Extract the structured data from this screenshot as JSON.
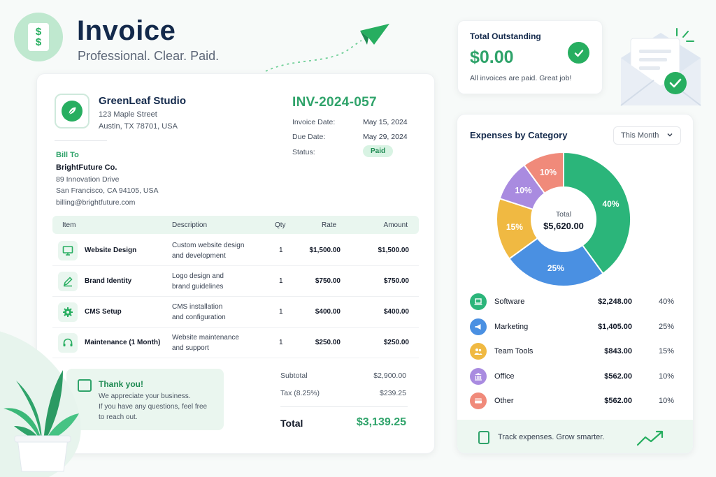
{
  "header": {
    "title": "Invoice",
    "subtitle": "Professional. Clear. Paid."
  },
  "invoice": {
    "company": {
      "name": "GreenLeaf Studio",
      "address1": "123 Maple Street",
      "address2": "Austin, TX 78701, USA"
    },
    "number": "INV-2024-057",
    "meta": [
      {
        "label": "Invoice Date:",
        "value": "May 15, 2024"
      },
      {
        "label": "Due Date:",
        "value": "May 29, 2024"
      },
      {
        "label": "Status:",
        "value": "Paid"
      }
    ],
    "bill_to": {
      "label": "Bill To",
      "name": "BrightFuture Co.",
      "address1": "89 Innovation Drive",
      "address2": "San Francisco, CA 94105, USA",
      "email": "billing@brightfuture.com"
    },
    "columns": [
      "Item",
      "Description",
      "Qty",
      "Rate",
      "Amount"
    ],
    "items": [
      {
        "icon": "monitor-icon",
        "name": "Website Design",
        "desc1": "Custom website design",
        "desc2": "and development",
        "qty": "1",
        "rate": "$1,500.00",
        "amount": "$1,500.00"
      },
      {
        "icon": "pen-icon",
        "name": "Brand Identity",
        "desc1": "Logo design and",
        "desc2": "brand guidelines",
        "qty": "1",
        "rate": "$750.00",
        "amount": "$750.00"
      },
      {
        "icon": "gear-icon",
        "name": "CMS Setup",
        "desc1": "CMS installation",
        "desc2": "and configuration",
        "qty": "1",
        "rate": "$400.00",
        "amount": "$400.00"
      },
      {
        "icon": "headset-icon",
        "name": "Maintenance (1 Month)",
        "desc1": "Website maintenance",
        "desc2": "and support",
        "qty": "1",
        "rate": "$250.00",
        "amount": "$250.00"
      }
    ],
    "thanks": {
      "title": "Thank you!",
      "line1": "We appreciate your business.",
      "line2": "If you have any questions, feel free",
      "line3": "to reach out."
    },
    "summary": {
      "subtotal_label": "Subtotal",
      "subtotal": "$2,900.00",
      "tax_label": "Tax (8.25%)",
      "tax": "$239.25",
      "total_label": "Total",
      "total": "$3,139.25"
    }
  },
  "outstanding": {
    "title": "Total Outstanding",
    "amount": "$0.00",
    "note": "All invoices are paid. Great job!"
  },
  "expenses": {
    "title": "Expenses by Category",
    "period": "This Month",
    "center_label": "Total",
    "center_value": "$5,620.00",
    "footer": "Track expenses. Grow smarter."
  },
  "chart_data": {
    "type": "pie",
    "categories": [
      "Software",
      "Marketing",
      "Team Tools",
      "Office",
      "Other"
    ],
    "values": [
      40,
      25,
      15,
      10,
      10
    ],
    "amounts": [
      "$2,248.00",
      "$1,405.00",
      "$843.00",
      "$562.00",
      "$562.00"
    ],
    "labels": [
      "40%",
      "25%",
      "15%",
      "10%",
      "10%"
    ],
    "colors": [
      "#2bb57a",
      "#4a90e2",
      "#f0b942",
      "#a98be0",
      "#f08a7a"
    ],
    "icons": [
      "laptop-icon",
      "megaphone-icon",
      "people-icon",
      "building-icon",
      "card-icon"
    ]
  }
}
